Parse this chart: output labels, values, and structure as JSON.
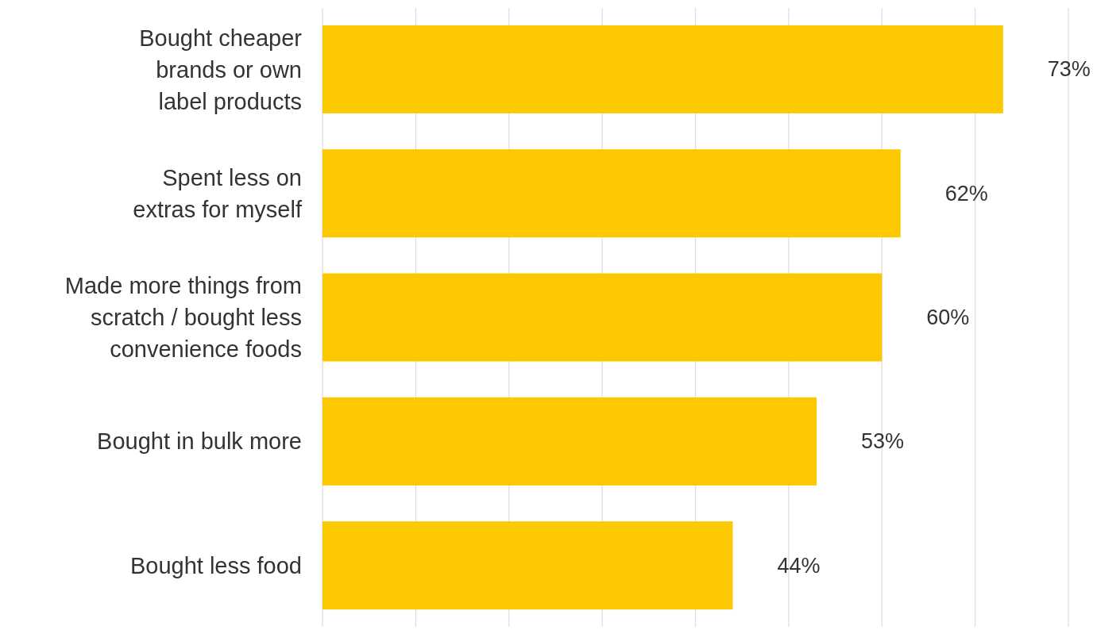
{
  "chart_data": {
    "type": "bar",
    "orientation": "horizontal",
    "categories": [
      "Bought cheaper\nbrands or own\nlabel products",
      "Spent less on\nextras for myself",
      "Made more things from\nscratch / bought less\nconvenience foods",
      "Bought in bulk more",
      "Bought less food"
    ],
    "values": [
      73,
      62,
      60,
      53,
      44
    ],
    "value_labels": [
      "73%",
      "62%",
      "60%",
      "53%",
      "44%"
    ],
    "color": "#fcc800",
    "xlim": [
      0,
      80
    ],
    "xticks": [
      {
        "value": 0,
        "label": null
      },
      {
        "value": 10,
        "label": null
      },
      {
        "value": 20,
        "label": null
      },
      {
        "value": 30,
        "label": null
      },
      {
        "value": 40,
        "label": null
      },
      {
        "value": 50,
        "label": null
      },
      {
        "value": 60,
        "label": null
      },
      {
        "value": 70,
        "label": null
      },
      {
        "value": 80,
        "label": null
      }
    ],
    "grid": "x"
  }
}
